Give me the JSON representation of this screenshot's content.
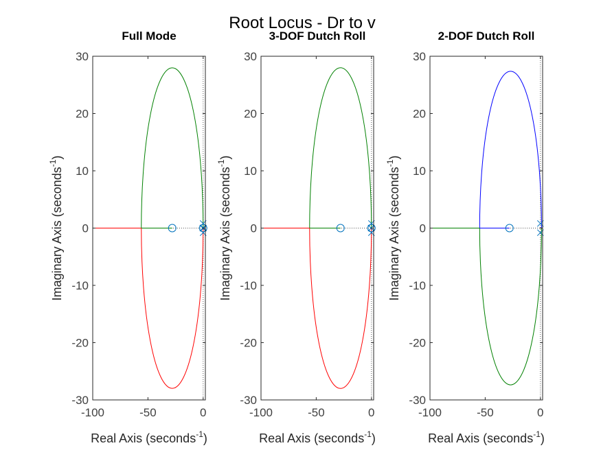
{
  "figure": {
    "title": "Root Locus - Dr to v"
  },
  "chart_data": [
    {
      "type": "line",
      "title": "Full Mode",
      "xlabel": {
        "main": "Real Axis (seconds",
        "sup": "-1",
        "close": ")"
      },
      "ylabel": {
        "main": "Imaginary Axis (seconds",
        "sup": "-1",
        "close": ")"
      },
      "xlim": [
        -100,
        2
      ],
      "ylim": [
        -30,
        30
      ],
      "xticks": [
        -100,
        -50,
        0
      ],
      "yticks": [
        -30,
        -20,
        -10,
        0,
        10,
        20,
        30
      ],
      "branch_colors": {
        "upper": "#008000",
        "lower": "#ff0000",
        "realaxis": "#ff0000",
        "realaxis_inner": "#008000"
      },
      "locus": {
        "center": -28,
        "half_width": 28,
        "half_height": 28,
        "breakin": -56
      },
      "zeros": [
        {
          "re": -28,
          "im": 0
        },
        {
          "re": 0,
          "im": 0
        }
      ],
      "poles": [
        {
          "re": 0,
          "im": 0.8
        },
        {
          "re": 0,
          "im": -0.8
        },
        {
          "re": -0.3,
          "im": 0
        },
        {
          "re": 0.2,
          "im": 0
        }
      ],
      "marker_color": "#0072bd"
    },
    {
      "type": "line",
      "title": "3-DOF Dutch Roll",
      "xlabel": {
        "main": "Real Axis (seconds",
        "sup": "-1",
        "close": ")"
      },
      "ylabel": {
        "main": "Imaginary Axis (seconds",
        "sup": "-1",
        "close": ")"
      },
      "xlim": [
        -100,
        2
      ],
      "ylim": [
        -30,
        30
      ],
      "xticks": [
        -100,
        -50,
        0
      ],
      "yticks": [
        -30,
        -20,
        -10,
        0,
        10,
        20,
        30
      ],
      "branch_colors": {
        "upper": "#008000",
        "lower": "#ff0000",
        "realaxis": "#ff0000",
        "realaxis_inner": "#008000"
      },
      "locus": {
        "center": -28,
        "half_width": 28,
        "half_height": 28,
        "breakin": -56
      },
      "zeros": [
        {
          "re": -28,
          "im": 0
        },
        {
          "re": 0,
          "im": 0
        }
      ],
      "poles": [
        {
          "re": 0,
          "im": 0.8
        },
        {
          "re": 0,
          "im": -0.8
        },
        {
          "re": -0.3,
          "im": 0
        }
      ],
      "marker_color": "#0072bd"
    },
    {
      "type": "line",
      "title": "2-DOF Dutch Roll",
      "xlabel": {
        "main": "Real Axis (seconds",
        "sup": "-1",
        "close": ")"
      },
      "ylabel": {
        "main": "Imaginary Axis (seconds",
        "sup": "-1",
        "close": ")"
      },
      "xlim": [
        -100,
        2
      ],
      "ylim": [
        -30,
        30
      ],
      "xticks": [
        -100,
        -50,
        0
      ],
      "yticks": [
        -30,
        -20,
        -10,
        0,
        10,
        20,
        30
      ],
      "branch_colors": {
        "upper": "#0000ff",
        "lower": "#008000",
        "realaxis": "#008000",
        "realaxis_inner": "#0000ff"
      },
      "locus": {
        "center": -27,
        "half_width": 28,
        "half_height": 27.4,
        "breakin": -55
      },
      "zeros": [
        {
          "re": -28,
          "im": 0
        }
      ],
      "poles": [
        {
          "re": 0,
          "im": 0.8
        },
        {
          "re": 0,
          "im": -0.8
        }
      ],
      "marker_color": "#0072bd"
    }
  ]
}
